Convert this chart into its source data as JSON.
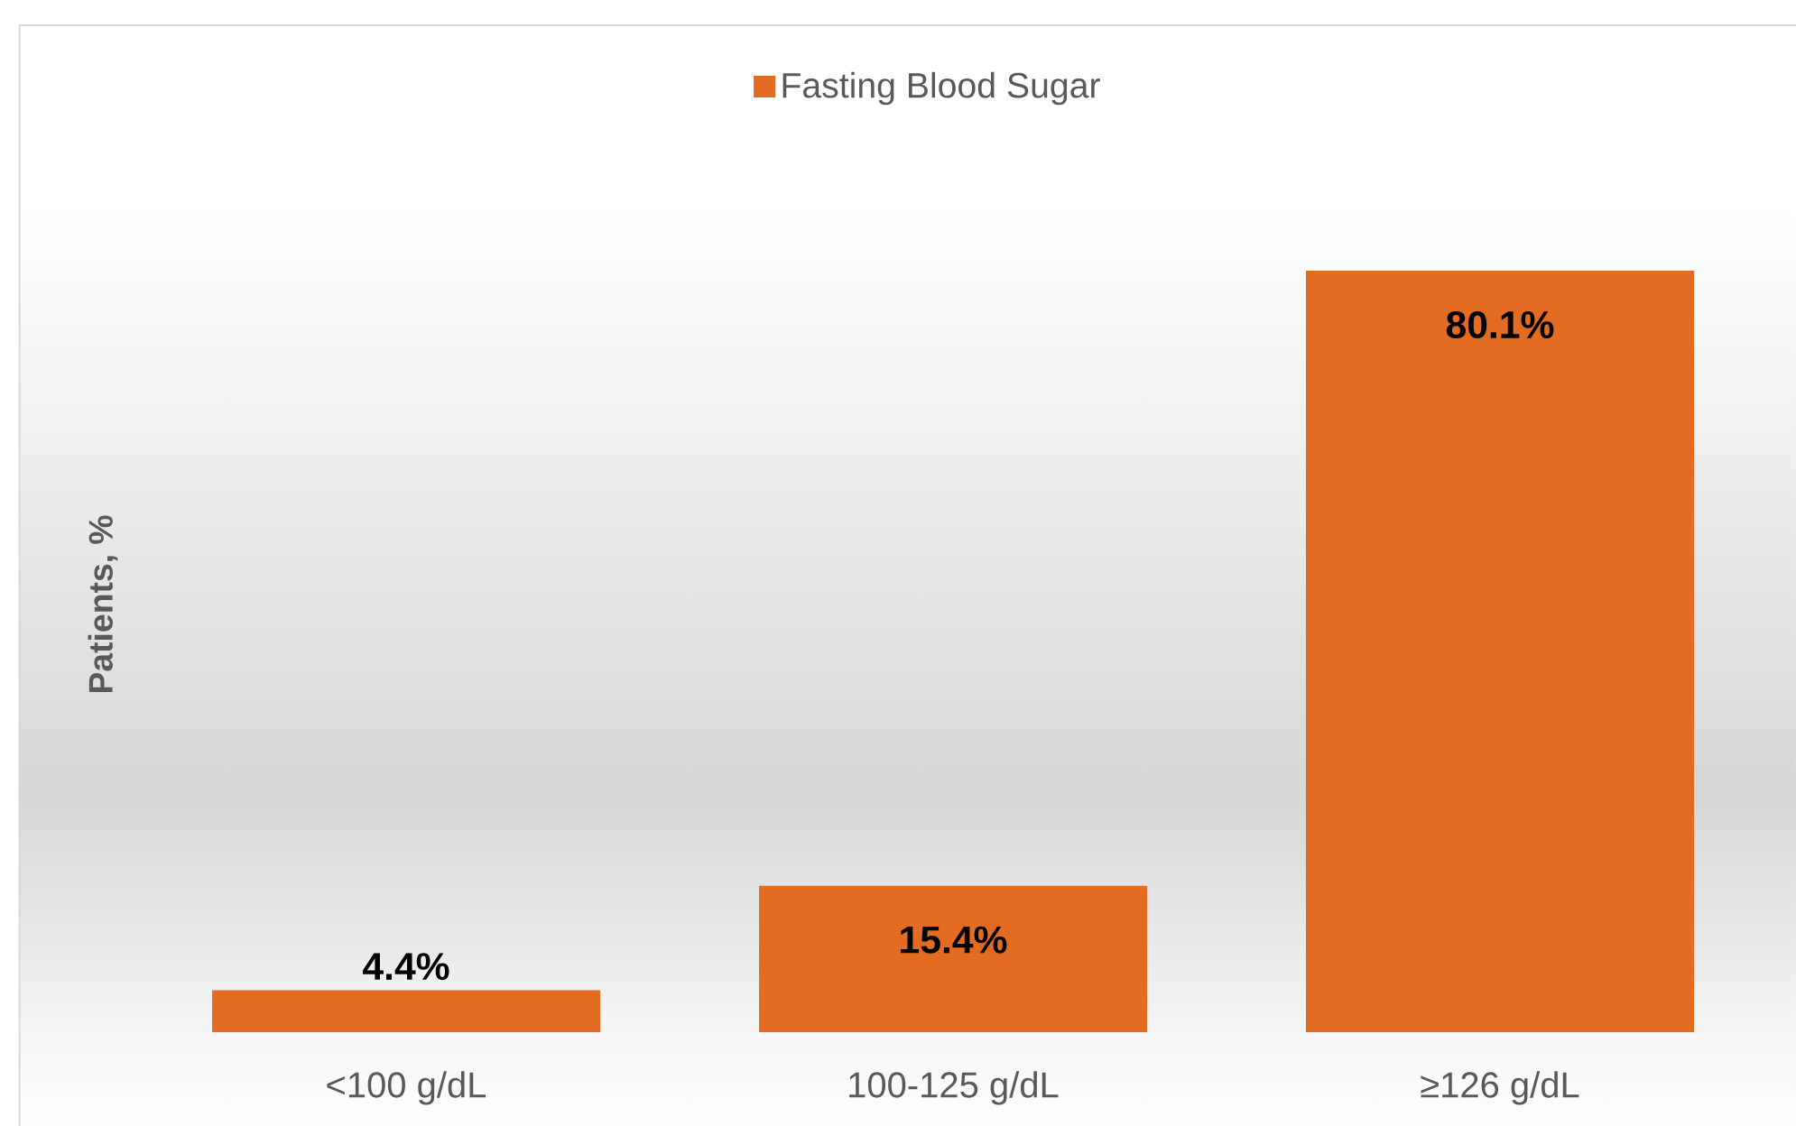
{
  "chart_data": {
    "type": "bar",
    "ylabel": "Patients, %",
    "categories": [
      "<100 g/dL",
      "100-125 g/dL",
      "≥126 g/dL"
    ],
    "series": [
      {
        "name": "Fasting Blood Sugar",
        "color": "#e46c22",
        "values": [
          4.4,
          15.4,
          80.1
        ],
        "value_labels": [
          "4.4%",
          "15.4%",
          "80.1%"
        ]
      }
    ],
    "legend": "top",
    "tick_labels": "x"
  }
}
